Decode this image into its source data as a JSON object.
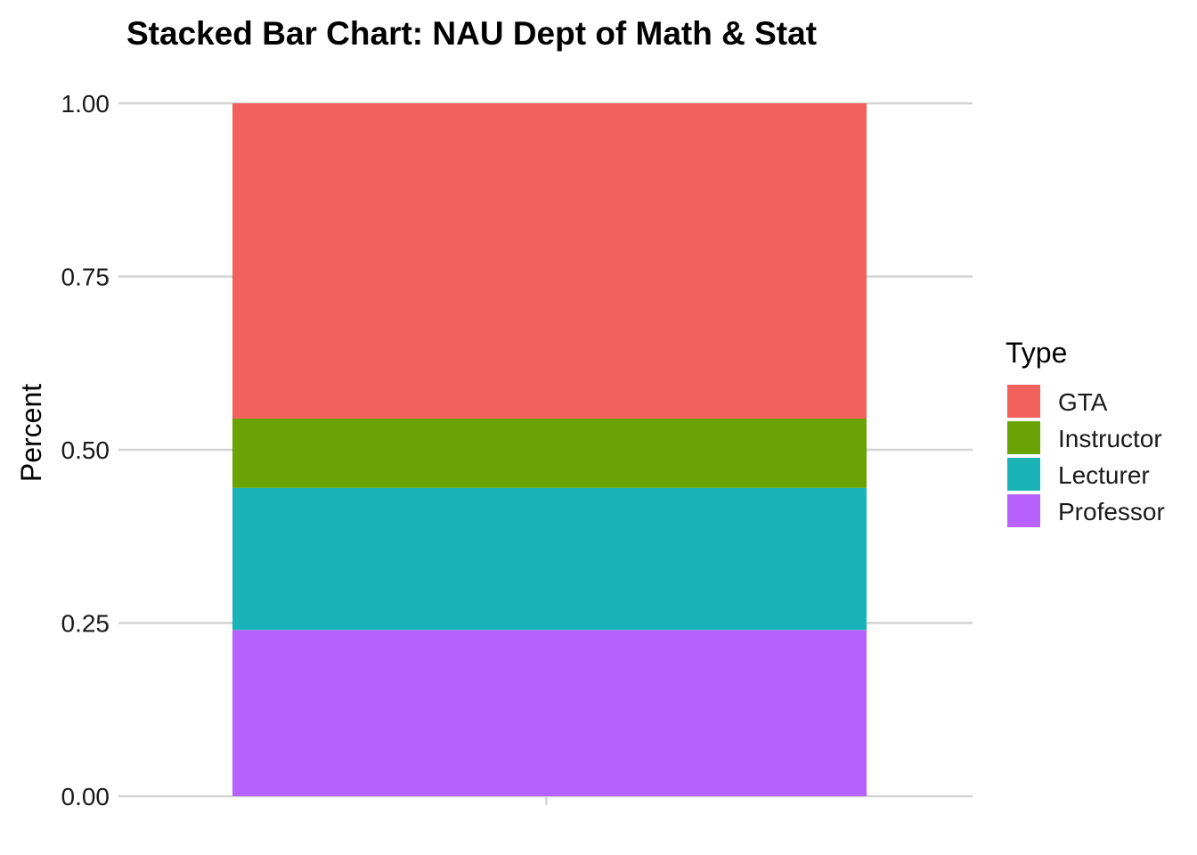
{
  "chart_data": {
    "type": "bar",
    "stacked": true,
    "title": "Stacked Bar Chart: NAU Dept of Math & Stat",
    "xlabel": "",
    "ylabel": "Percent",
    "ylim": [
      0,
      1
    ],
    "y_ticks": [
      "0.00",
      "0.25",
      "0.50",
      "0.75",
      "1.00"
    ],
    "categories": [
      ""
    ],
    "grid": true,
    "legend": {
      "title": "Type",
      "position": "right"
    },
    "series": [
      {
        "name": "GTA",
        "values": [
          0.455
        ],
        "color": "#F3615C"
      },
      {
        "name": "Instructor",
        "values": [
          0.1
        ],
        "color": "#6BA204"
      },
      {
        "name": "Lecturer",
        "values": [
          0.205
        ],
        "color": "#1AB4B8"
      },
      {
        "name": "Professor",
        "values": [
          0.24
        ],
        "color": "#B762FE"
      }
    ]
  }
}
